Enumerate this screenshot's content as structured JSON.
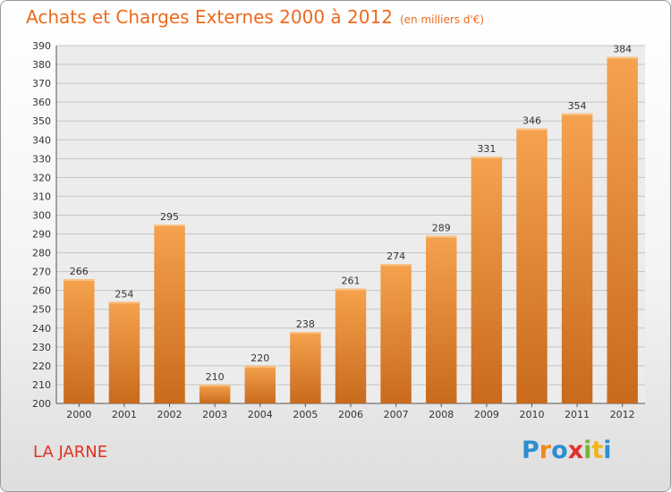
{
  "header": {
    "title": "Achats et Charges Externes 2000 à 2012",
    "unit": "(en milliers d'€)"
  },
  "footer": {
    "place": "LA JARNE",
    "logo_letters": [
      "P",
      "r",
      "o",
      "x",
      "i",
      "t",
      "i"
    ]
  },
  "colors": {
    "bar_light": "#f5a24e",
    "bar_dark": "#c96a1c",
    "title": "#ed6a1e",
    "place": "#e0331f"
  },
  "chart_data": {
    "type": "bar",
    "title": "Achats et Charges Externes 2000 à 2012",
    "subtitle": "(en milliers d'€)",
    "categories": [
      "2000",
      "2001",
      "2002",
      "2003",
      "2004",
      "2005",
      "2006",
      "2007",
      "2008",
      "2009",
      "2010",
      "2011",
      "2012"
    ],
    "values": [
      266,
      254,
      295,
      210,
      220,
      238,
      261,
      274,
      289,
      331,
      346,
      354,
      384
    ],
    "ylim": [
      200,
      390
    ],
    "yticks": [
      200,
      210,
      220,
      230,
      240,
      250,
      260,
      270,
      280,
      290,
      300,
      310,
      320,
      330,
      340,
      350,
      360,
      370,
      380,
      390
    ],
    "grid": true,
    "legend": "none"
  }
}
